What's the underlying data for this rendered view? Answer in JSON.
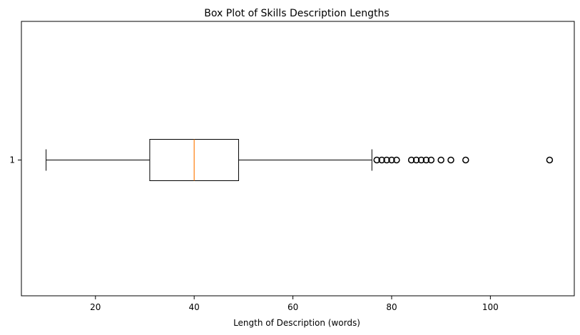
{
  "chart_data": {
    "type": "boxplot",
    "orientation": "horizontal",
    "title": "Box Plot of Skills Description Lengths",
    "xlabel": "Length of Description (words)",
    "ylabel": "",
    "xlim": [
      5,
      117
    ],
    "xticks": [
      20,
      40,
      60,
      80,
      100
    ],
    "xtick_labels": [
      "20",
      "40",
      "60",
      "80",
      "100"
    ],
    "categories": [
      "1"
    ],
    "grid": false,
    "legend": "none",
    "box": {
      "whisker_low": 10,
      "q1": 31,
      "median": 40,
      "q3": 49,
      "whisker_high": 76
    },
    "outliers": [
      77,
      78,
      79,
      80,
      81,
      84,
      85,
      86,
      87,
      88,
      90,
      92,
      95,
      112
    ],
    "colors": {
      "box": "#000000",
      "median": "#ff7f0e",
      "outlier": "#000000"
    }
  }
}
